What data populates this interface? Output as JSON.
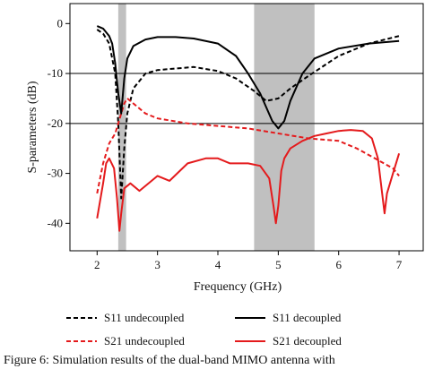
{
  "chart_data": {
    "type": "line",
    "title": "",
    "xlabel": "Frequency (GHz)",
    "ylabel": "S-parameters (dB)",
    "xlim": [
      1.55,
      7.4
    ],
    "ylim": [
      -45.5,
      4
    ],
    "x_ticks": [
      2,
      3,
      4,
      5,
      6,
      7
    ],
    "y_ticks": [
      0,
      -10,
      -20,
      -30,
      -40
    ],
    "x_tick_labels": [
      "2",
      "3",
      "4",
      "5",
      "6",
      "7"
    ],
    "y_tick_labels": [
      "0",
      "-10",
      "-20",
      "-30",
      "-40"
    ],
    "grid": false,
    "reference_lines_db": [
      -10,
      -20
    ],
    "shaded_bands_ghz": [
      [
        2.35,
        2.48
      ],
      [
        4.6,
        5.6
      ]
    ],
    "legend_position": "bottom",
    "series": [
      {
        "name": "S11 undecoupled",
        "color": "#000000",
        "dash": "dashed",
        "x": [
          2.0,
          2.1,
          2.2,
          2.3,
          2.35,
          2.4,
          2.45,
          2.5,
          2.6,
          2.8,
          3.0,
          3.3,
          3.6,
          4.0,
          4.3,
          4.6,
          4.8,
          5.0,
          5.2,
          5.5,
          6.0,
          6.5,
          7.0
        ],
        "y": [
          -1.2,
          -2.0,
          -4.0,
          -10.0,
          -20.0,
          -35.0,
          -25.0,
          -18.0,
          -13.0,
          -10.0,
          -9.3,
          -9.0,
          -8.7,
          -9.5,
          -11.0,
          -13.5,
          -15.5,
          -15.0,
          -13.0,
          -10.5,
          -6.5,
          -4.0,
          -2.5
        ]
      },
      {
        "name": "S21 undecoupled",
        "color": "#e41a1c",
        "dash": "dashed",
        "x": [
          2.0,
          2.1,
          2.2,
          2.3,
          2.35,
          2.4,
          2.45,
          2.5,
          2.6,
          2.8,
          3.0,
          3.5,
          4.0,
          4.5,
          5.0,
          5.5,
          6.0,
          6.3,
          6.6,
          6.9,
          7.0
        ],
        "y": [
          -34.0,
          -28.0,
          -24.0,
          -22.0,
          -20.0,
          -18.0,
          -16.0,
          -15.0,
          -16.0,
          -18.0,
          -19.0,
          -20.0,
          -20.5,
          -21.0,
          -22.0,
          -23.0,
          -23.5,
          -25.0,
          -27.0,
          -29.0,
          -30.5
        ]
      },
      {
        "name": "S11 decoupled",
        "color": "#000000",
        "dash": "solid",
        "x": [
          2.0,
          2.1,
          2.2,
          2.25,
          2.3,
          2.35,
          2.4,
          2.45,
          2.5,
          2.6,
          2.8,
          3.0,
          3.3,
          3.6,
          4.0,
          4.3,
          4.5,
          4.7,
          4.9,
          5.0,
          5.1,
          5.2,
          5.4,
          5.6,
          6.0,
          6.5,
          7.0
        ],
        "y": [
          -0.5,
          -1.0,
          -2.5,
          -4.0,
          -8.0,
          -14.0,
          -18.0,
          -11.0,
          -7.0,
          -4.5,
          -3.2,
          -2.7,
          -2.7,
          -3.0,
          -4.0,
          -6.5,
          -10.0,
          -14.0,
          -19.5,
          -21.0,
          -19.5,
          -15.5,
          -10.0,
          -7.0,
          -5.0,
          -4.0,
          -3.5
        ]
      },
      {
        "name": "S21 decoupled",
        "color": "#e41a1c",
        "dash": "solid",
        "x": [
          2.0,
          2.1,
          2.15,
          2.2,
          2.28,
          2.33,
          2.37,
          2.4,
          2.45,
          2.55,
          2.7,
          3.0,
          3.2,
          3.5,
          3.8,
          4.0,
          4.2,
          4.5,
          4.7,
          4.85,
          4.92,
          4.96,
          5.0,
          5.05,
          5.1,
          5.2,
          5.4,
          5.6,
          5.8,
          6.0,
          6.2,
          6.4,
          6.55,
          6.65,
          6.72,
          6.76,
          6.8,
          6.9,
          7.0
        ],
        "y": [
          -39.0,
          -32.0,
          -28.0,
          -27.0,
          -29.0,
          -35.0,
          -41.5,
          -38.0,
          -33.0,
          -32.0,
          -33.5,
          -30.5,
          -31.5,
          -28.0,
          -27.0,
          -27.0,
          -28.0,
          -28.0,
          -28.5,
          -31.0,
          -36.5,
          -40.0,
          -36.5,
          -29.5,
          -27.0,
          -25.0,
          -23.5,
          -22.5,
          -22.0,
          -21.5,
          -21.3,
          -21.5,
          -23.0,
          -27.0,
          -34.0,
          -38.0,
          -34.0,
          -30.0,
          -26.0
        ]
      }
    ]
  },
  "legend": {
    "items": [
      {
        "label": "S11 undecoupled",
        "color": "#000000",
        "dash": "dashed"
      },
      {
        "label": "S11 decoupled",
        "color": "#000000",
        "dash": "solid"
      },
      {
        "label": "S21 undecoupled",
        "color": "#e41a1c",
        "dash": "dashed"
      },
      {
        "label": "S21 decoupled",
        "color": "#e41a1c",
        "dash": "solid"
      }
    ]
  },
  "caption": {
    "text": "Figure 6: Simulation results of the dual-band MIMO antenna with"
  }
}
